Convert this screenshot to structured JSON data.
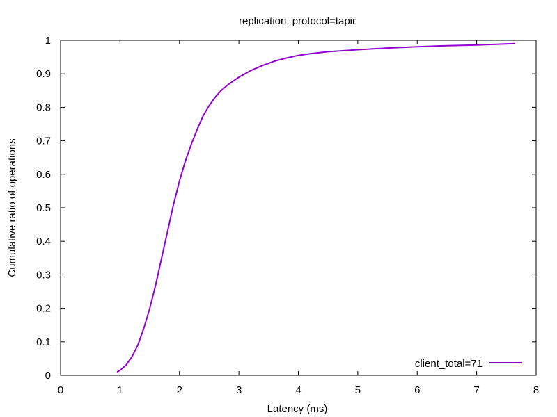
{
  "chart_data": {
    "type": "line",
    "title": "replication_protocol=tapir",
    "xlabel": "Latency (ms)",
    "ylabel": "Cumulative ratio of operations",
    "xlim": [
      0,
      8
    ],
    "ylim": [
      0,
      1
    ],
    "x_ticks": [
      "0",
      "1",
      "2",
      "3",
      "4",
      "5",
      "6",
      "7",
      "8"
    ],
    "y_ticks": [
      "0",
      "0.1",
      "0.2",
      "0.3",
      "0.4",
      "0.5",
      "0.6",
      "0.7",
      "0.8",
      "0.9",
      "1"
    ],
    "grid": false,
    "legend_position": "bottom-right",
    "series": [
      {
        "name": "client_total=71",
        "color": "#9400d3",
        "x": [
          0.95,
          1.0,
          1.1,
          1.2,
          1.3,
          1.4,
          1.5,
          1.6,
          1.7,
          1.8,
          1.9,
          2.0,
          2.1,
          2.2,
          2.3,
          2.4,
          2.5,
          2.6,
          2.7,
          2.8,
          2.9,
          3.0,
          3.1,
          3.2,
          3.4,
          3.6,
          3.8,
          4.0,
          4.2,
          4.5,
          5.0,
          5.5,
          6.0,
          6.5,
          7.0,
          7.65
        ],
        "y": [
          0.01,
          0.015,
          0.03,
          0.055,
          0.09,
          0.14,
          0.2,
          0.27,
          0.35,
          0.43,
          0.51,
          0.58,
          0.64,
          0.69,
          0.735,
          0.775,
          0.805,
          0.83,
          0.85,
          0.865,
          0.878,
          0.89,
          0.9,
          0.91,
          0.925,
          0.938,
          0.947,
          0.955,
          0.96,
          0.966,
          0.972,
          0.977,
          0.981,
          0.984,
          0.986,
          0.99
        ]
      }
    ]
  }
}
